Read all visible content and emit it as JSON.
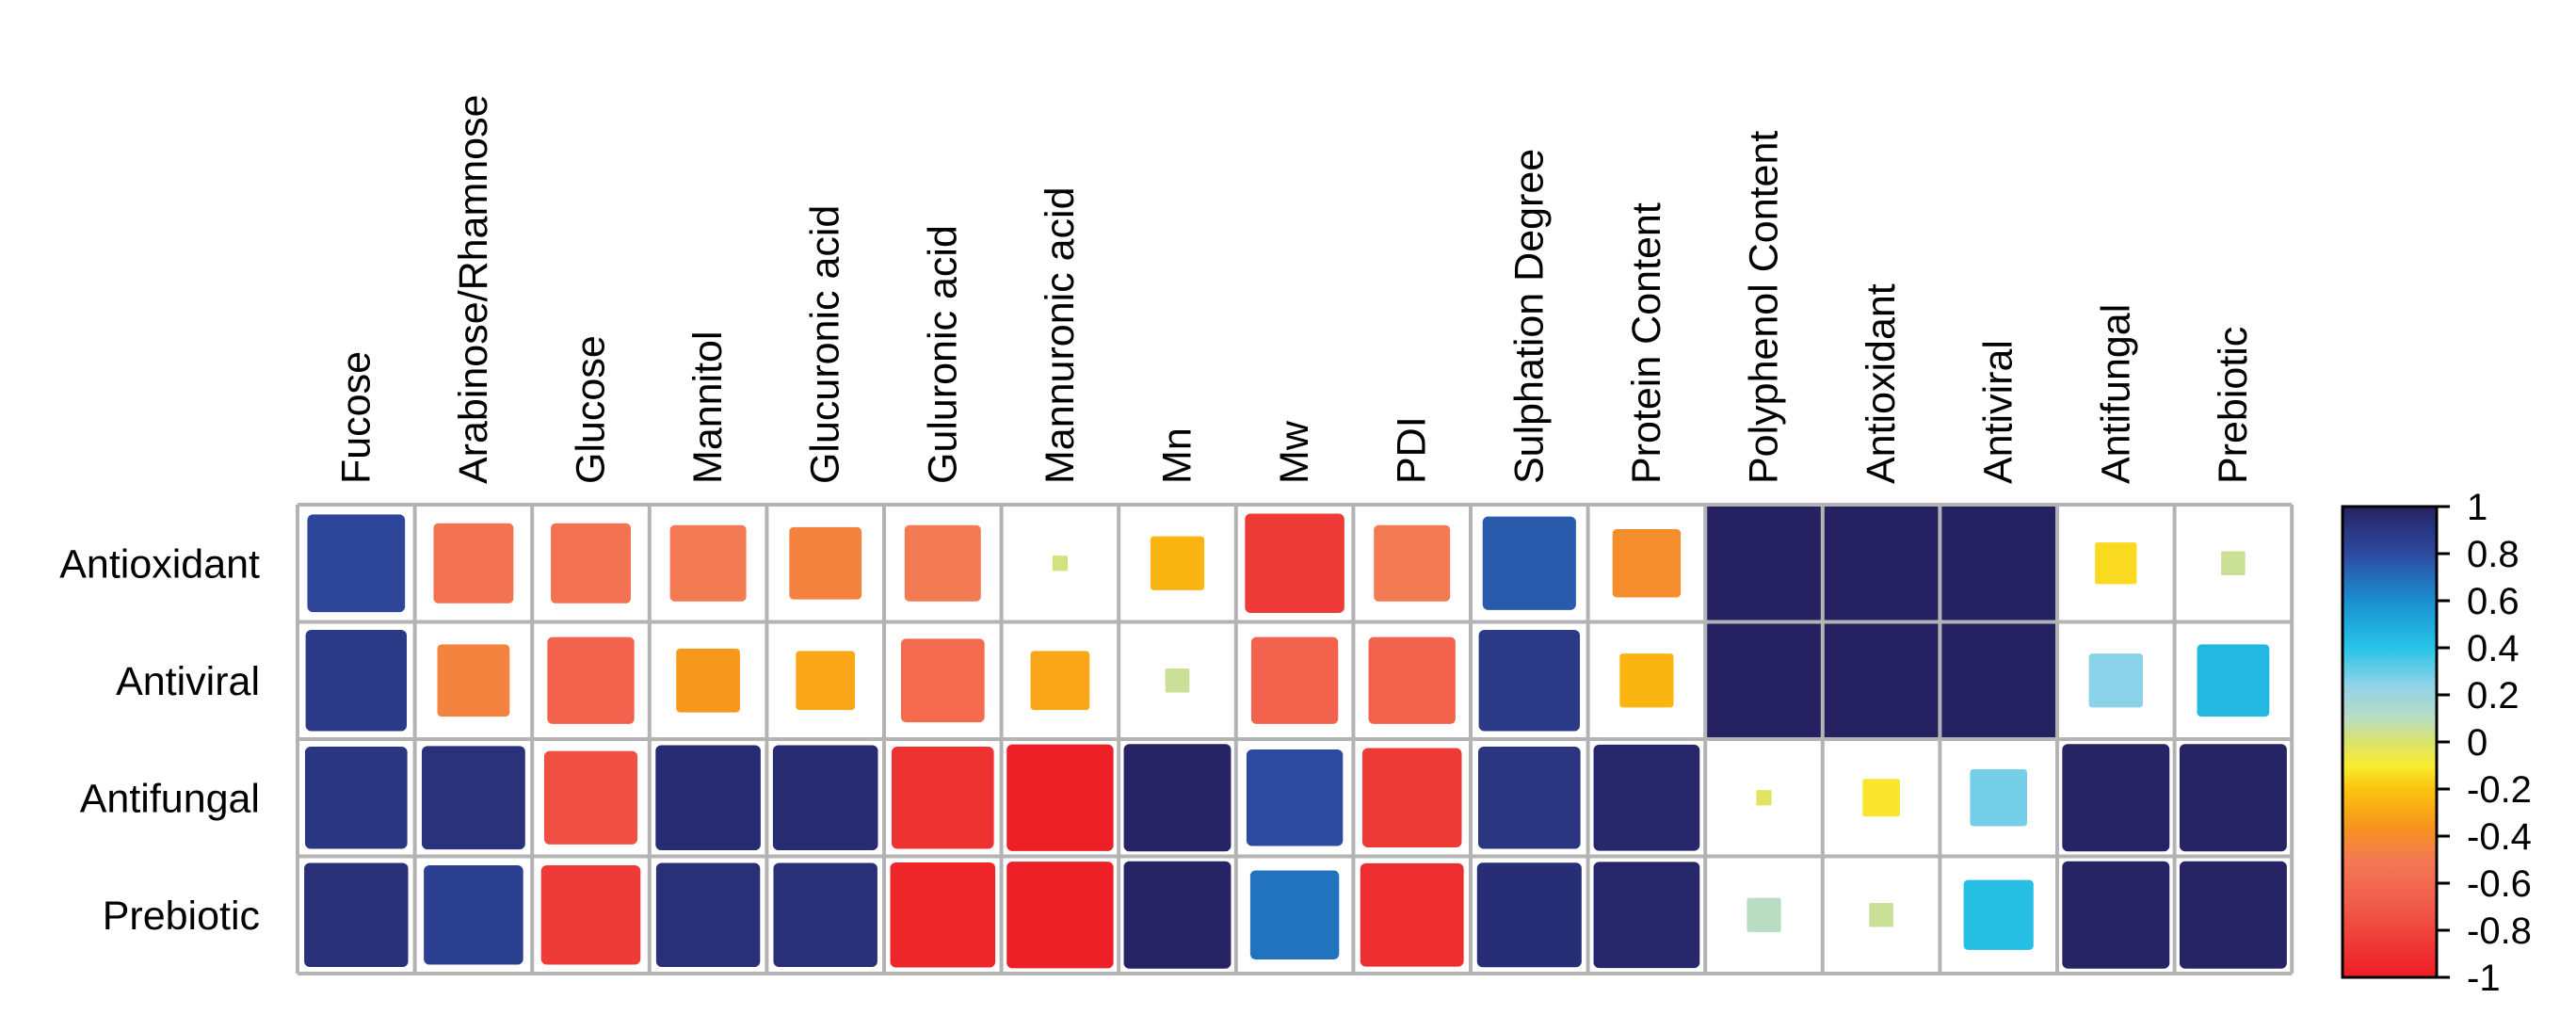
{
  "chart_data": {
    "type": "heatmap",
    "columns": [
      "Fucose",
      "Arabinose/Rhamnose",
      "Glucose",
      "Mannitol",
      "Glucuronic acid",
      "Guluronic acid",
      "Mannuronic acid",
      "Mn",
      "Mw",
      "PDI",
      "Sulphation Degree",
      "Protein Content",
      "Polyphenol Content",
      "Antioxidant",
      "Antiviral",
      "Antifungal",
      "Prebiotic"
    ],
    "rows": [
      "Antioxidant",
      "Antiviral",
      "Antifungal",
      "Prebiotic"
    ],
    "values": [
      [
        0.82,
        -0.55,
        -0.55,
        -0.5,
        -0.45,
        -0.5,
        0.02,
        -0.25,
        -0.85,
        -0.5,
        0.75,
        -0.4,
        1.0,
        1.0,
        1.0,
        -0.15,
        0.05
      ],
      [
        0.88,
        -0.45,
        -0.65,
        -0.35,
        -0.3,
        -0.6,
        -0.3,
        0.05,
        -0.65,
        -0.65,
        0.88,
        -0.25,
        1.0,
        1.0,
        1.0,
        0.25,
        0.45
      ],
      [
        0.9,
        0.92,
        -0.75,
        0.95,
        0.95,
        -0.9,
        -0.98,
        0.99,
        0.8,
        -0.85,
        0.9,
        0.97,
        -0.02,
        -0.12,
        0.28,
        0.99,
        0.99
      ],
      [
        0.93,
        0.85,
        -0.85,
        0.93,
        0.93,
        -0.95,
        -0.98,
        0.99,
        0.68,
        -0.92,
        0.94,
        0.97,
        0.1,
        0.05,
        0.42,
        0.99,
        0.99
      ]
    ],
    "colorbar_ticks": [
      "1",
      "0.8",
      "0.6",
      "0.4",
      "0.2",
      "0",
      "-0.2",
      "-0.4",
      "-0.6",
      "-0.8",
      "-1"
    ],
    "value_range": [
      -1,
      1
    ],
    "cell_encoding": "square size and color proportional to correlation value",
    "colors": {
      "palette": [
        "#ed1c24",
        "#f47a53",
        "#f7941d",
        "#f9ed32",
        "#c8dc8a",
        "#8fd3e8",
        "#27c4e6",
        "#0f7cc1",
        "#2e3192",
        "#262262"
      ],
      "grid": "#b3b3b3",
      "cell_bg": "#ffffff"
    },
    "title": "",
    "xlabel": "",
    "ylabel": "",
    "legend": "right"
  }
}
